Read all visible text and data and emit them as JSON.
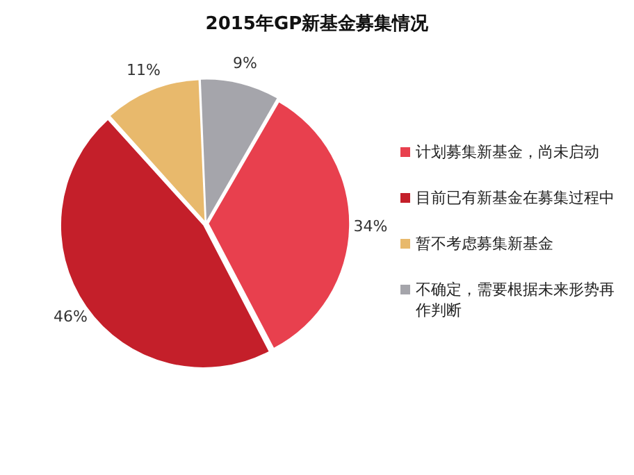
{
  "chart_data": {
    "type": "pie",
    "title": "2015年GP新基金募集情况",
    "categories": [
      "计划募集新基金，尚未启动",
      "目前已有新基金在募集过程中",
      "暂不考虑募集新基金",
      "不确定，需要根据未来形势再作判断"
    ],
    "values": [
      34,
      46,
      11,
      9
    ],
    "colors": [
      "#e8404e",
      "#c41f2a",
      "#e8b96c",
      "#a5a5ab"
    ],
    "value_labels": [
      "34%",
      "46%",
      "11%",
      "9%"
    ],
    "legend": "right"
  }
}
